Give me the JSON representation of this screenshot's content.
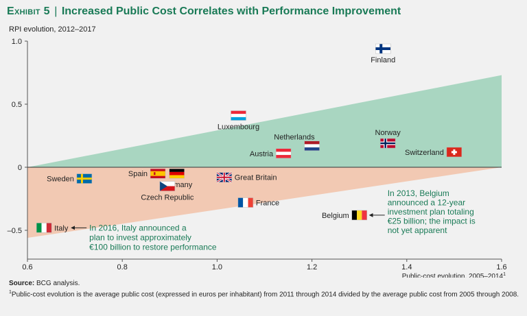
{
  "header": {
    "exhibit": "Exhibit 5",
    "title": "Increased Public Cost Correlates with Performance Improvement"
  },
  "chart_data": {
    "type": "scatter",
    "title": "Increased Public Cost Correlates with Performance Improvement",
    "ylabel": "RPI evolution, 2012–2017",
    "xlabel": "Public-cost evolution, 2005–2014",
    "xlabel_footnote_mark": "1",
    "xlim": [
      0.6,
      1.6
    ],
    "ylim": [
      -0.72,
      1.0
    ],
    "xticks": [
      0.6,
      0.8,
      1.0,
      1.2,
      1.4,
      1.6
    ],
    "xtick_labels": [
      "0.6",
      "0.8",
      "1.0",
      "1.2",
      "1.4",
      "1.6"
    ],
    "yticks": [
      1.0,
      0.5,
      0,
      -0.5
    ],
    "ytick_labels": [
      "1.0",
      "0.5",
      "0",
      "–0.5"
    ],
    "grid": false,
    "bands": {
      "upper": {
        "color": "#a9d6c1",
        "y_at_xmin": 0,
        "y_at_xmax": 0.73
      },
      "lower": {
        "color": "#f2c9b3",
        "y_at_xmin": -0.56,
        "y_at_xmax": 0
      }
    },
    "points": [
      {
        "country": "Finland",
        "x": 1.35,
        "y": 0.94,
        "flag": "finland",
        "label_pos": "below"
      },
      {
        "country": "Luxembourg",
        "x": 1.045,
        "y": 0.41,
        "flag": "luxembourg",
        "label_pos": "below"
      },
      {
        "country": "Netherlands",
        "x": 1.2,
        "y": 0.17,
        "flag": "netherlands",
        "label_pos": "above-left"
      },
      {
        "country": "Norway",
        "x": 1.36,
        "y": 0.19,
        "flag": "norway",
        "label_pos": "above"
      },
      {
        "country": "Austria",
        "x": 1.14,
        "y": 0.11,
        "flag": "austria",
        "label_pos": "left"
      },
      {
        "country": "Switzerland",
        "x": 1.5,
        "y": 0.12,
        "flag": "switzerland",
        "label_pos": "left"
      },
      {
        "country": "Sweden",
        "x": 0.72,
        "y": -0.09,
        "flag": "sweden",
        "label_pos": "left"
      },
      {
        "country": "Spain",
        "x": 0.875,
        "y": -0.05,
        "flag": "spain",
        "label_pos": "left"
      },
      {
        "country": "Germany",
        "x": 0.915,
        "y": -0.05,
        "flag": "germany",
        "label_pos": "below"
      },
      {
        "country": "Czech Republic",
        "x": 0.895,
        "y": -0.15,
        "flag": "czech",
        "label_pos": "below"
      },
      {
        "country": "Great Britain",
        "x": 1.015,
        "y": -0.08,
        "flag": "uk",
        "label_pos": "right"
      },
      {
        "country": "France",
        "x": 1.06,
        "y": -0.28,
        "flag": "france",
        "label_pos": "right"
      },
      {
        "country": "Belgium",
        "x": 1.3,
        "y": -0.38,
        "flag": "belgium",
        "label_pos": "left"
      },
      {
        "country": "Italy",
        "x": 0.635,
        "y": -0.48,
        "flag": "italy",
        "label_pos": "right"
      }
    ],
    "annotations": [
      {
        "target": "Italy",
        "lines": [
          "In 2016, Italy announced a",
          "plan to invest approximately",
          "€100 billion to restore performance"
        ],
        "color": "#197a56"
      },
      {
        "target": "Belgium",
        "lines": [
          "In 2013, Belgium",
          "announced a 12-year",
          "investment plan totaling",
          "€25 billion; the impact is",
          "not yet apparent"
        ],
        "color": "#197a56"
      }
    ]
  },
  "footer": {
    "source_label": "Source:",
    "source_text": "BCG analysis.",
    "note_mark": "1",
    "note_text": "Public-cost evolution is the average public cost (expressed in euros per inhabitant) from 2011 through 2014 divided by the average public cost from 2005 through 2008."
  }
}
